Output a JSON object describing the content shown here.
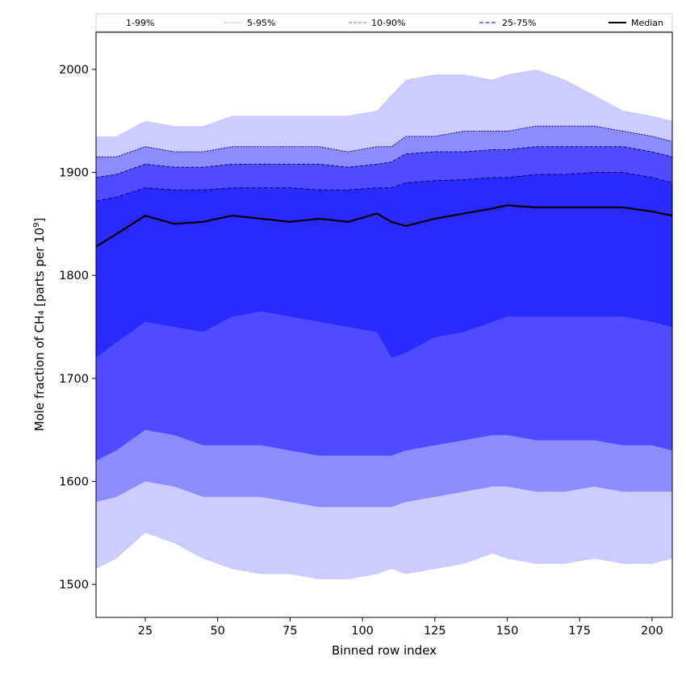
{
  "chart_data": {
    "type": "area",
    "xlabel": "Binned row index",
    "ylabel_main": "Mole fraction of CH₄ [parts per 10",
    "ylabel_sup": "9",
    "ylabel_tail": "]",
    "xlim": [
      8,
      207
    ],
    "ylim": [
      1468,
      2036
    ],
    "xticks": [
      25,
      50,
      75,
      100,
      125,
      150,
      175,
      200
    ],
    "yticks": [
      1500,
      1600,
      1700,
      1800,
      1900,
      2000
    ],
    "legend_placement": "top",
    "legend": [
      {
        "label": "1-99%",
        "dash": "1,1",
        "color": "#d0d0ff",
        "width": 0.8
      },
      {
        "label": "5-95%",
        "dash": "2,1.5",
        "color": "#8080e0",
        "width": 0.8
      },
      {
        "label": "10-90%",
        "dash": "4,2",
        "color": "#6a6af0",
        "width": 1
      },
      {
        "label": "25-75%",
        "dash": "5,2.5",
        "color": "#3333dd",
        "width": 1.2
      },
      {
        "label": "Median",
        "dash": "",
        "color": "#000000",
        "width": 2
      }
    ],
    "colors": {
      "band_1_99": "#ccccff",
      "band_5_95": "#8c8cff",
      "band_10_90": "#4d4dff",
      "band_25_75": "#2a2aff",
      "median": "#000000",
      "percentile_line": "#000066"
    },
    "x": [
      8,
      15,
      25,
      35,
      45,
      55,
      65,
      75,
      85,
      95,
      105,
      110,
      115,
      125,
      135,
      145,
      150,
      160,
      170,
      180,
      190,
      200,
      207
    ],
    "series": [
      {
        "name": "1-99%",
        "lower": [
          1515,
          1525,
          1550,
          1540,
          1525,
          1515,
          1510,
          1510,
          1505,
          1505,
          1510,
          1515,
          1510,
          1515,
          1520,
          1530,
          1525,
          1520,
          1520,
          1525,
          1520,
          1520,
          1525
        ],
        "upper": [
          1935,
          1935,
          1950,
          1945,
          1945,
          1955,
          1955,
          1955,
          1955,
          1955,
          1960,
          1975,
          1990,
          1995,
          1995,
          1990,
          1995,
          2000,
          1990,
          1975,
          1960,
          1955,
          1950
        ]
      },
      {
        "name": "5-95%",
        "lower": [
          1580,
          1585,
          1600,
          1595,
          1585,
          1585,
          1585,
          1580,
          1575,
          1575,
          1575,
          1575,
          1580,
          1585,
          1590,
          1595,
          1595,
          1590,
          1590,
          1595,
          1590,
          1590,
          1590
        ],
        "upper": [
          1915,
          1915,
          1925,
          1920,
          1920,
          1925,
          1925,
          1925,
          1925,
          1920,
          1925,
          1925,
          1935,
          1935,
          1940,
          1940,
          1940,
          1945,
          1945,
          1945,
          1940,
          1935,
          1930
        ]
      },
      {
        "name": "10-90%",
        "lower": [
          1620,
          1630,
          1650,
          1645,
          1635,
          1635,
          1635,
          1630,
          1625,
          1625,
          1625,
          1625,
          1630,
          1635,
          1640,
          1645,
          1645,
          1640,
          1640,
          1640,
          1635,
          1635,
          1630
        ],
        "upper": [
          1895,
          1898,
          1908,
          1905,
          1905,
          1908,
          1908,
          1908,
          1908,
          1905,
          1908,
          1910,
          1918,
          1920,
          1920,
          1922,
          1922,
          1925,
          1925,
          1925,
          1925,
          1920,
          1915
        ]
      },
      {
        "name": "25-75%",
        "lower": [
          1720,
          1735,
          1755,
          1750,
          1745,
          1760,
          1765,
          1760,
          1755,
          1750,
          1745,
          1720,
          1725,
          1740,
          1745,
          1755,
          1760,
          1760,
          1760,
          1760,
          1760,
          1755,
          1750
        ],
        "upper": [
          1872,
          1876,
          1885,
          1883,
          1883,
          1885,
          1885,
          1885,
          1883,
          1883,
          1885,
          1885,
          1890,
          1892,
          1893,
          1895,
          1895,
          1898,
          1898,
          1900,
          1900,
          1895,
          1890
        ]
      },
      {
        "name": "Median",
        "values": [
          1828,
          1840,
          1858,
          1850,
          1852,
          1858,
          1855,
          1852,
          1855,
          1852,
          1860,
          1852,
          1848,
          1855,
          1860,
          1865,
          1868,
          1866,
          1866,
          1866,
          1866,
          1862,
          1858
        ]
      }
    ]
  }
}
